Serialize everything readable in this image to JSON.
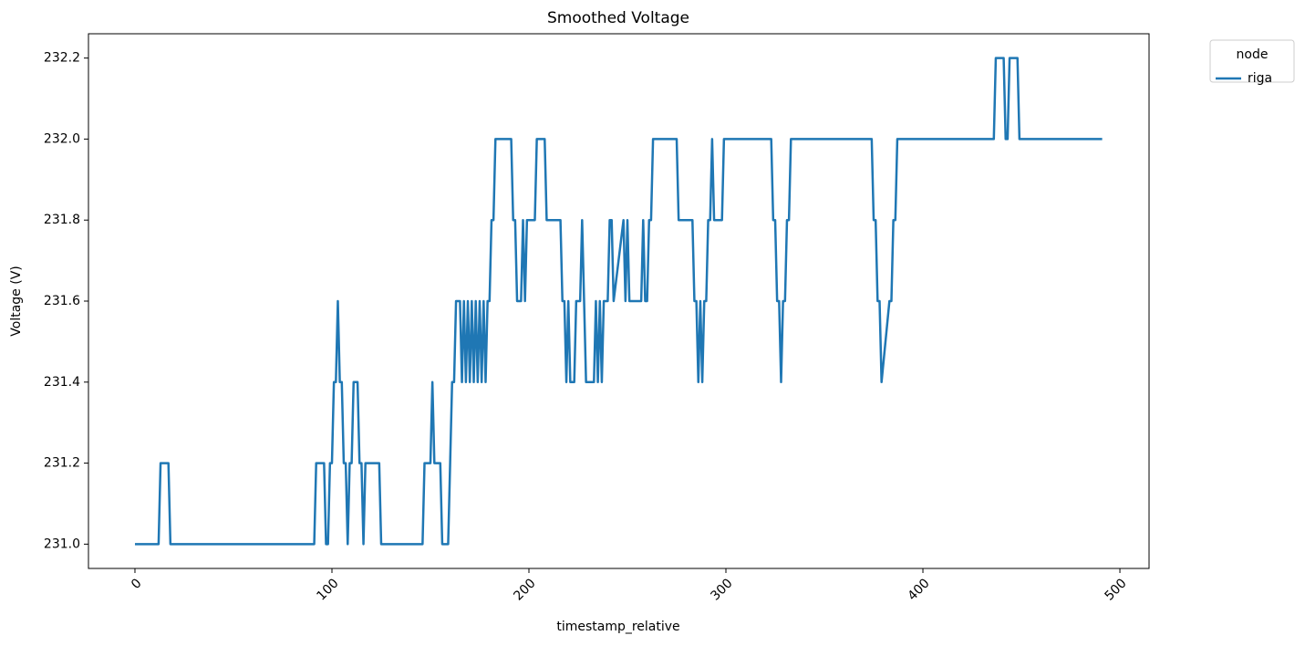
{
  "chart_data": {
    "type": "line",
    "title": "Smoothed Voltage",
    "xlabel": "timestamp_relative",
    "ylabel": "Voltage (V)",
    "x": [
      0,
      12,
      13,
      17,
      18,
      91,
      92,
      96,
      97,
      98,
      99,
      100,
      101,
      102,
      103,
      104,
      105,
      106,
      107,
      108,
      109,
      110,
      111,
      113,
      114,
      115,
      116,
      117,
      124,
      125,
      146,
      147,
      150,
      151,
      152,
      155,
      156,
      159,
      160,
      161,
      162,
      163,
      165,
      166,
      167,
      168,
      169,
      170,
      171,
      172,
      173,
      174,
      175,
      176,
      177,
      178,
      179,
      180,
      181,
      182,
      183,
      191,
      192,
      193,
      194,
      196,
      197,
      198,
      199,
      203,
      204,
      208,
      209,
      216,
      217,
      218,
      219,
      220,
      221,
      223,
      224,
      226,
      227,
      228,
      229,
      233,
      234,
      235,
      236,
      237,
      238,
      240,
      241,
      242,
      243,
      248,
      249,
      250,
      251,
      257,
      258,
      259,
      260,
      261,
      262,
      263,
      275,
      276,
      283,
      284,
      285,
      286,
      287,
      288,
      289,
      290,
      291,
      292,
      293,
      294,
      298,
      299,
      323,
      324,
      325,
      326,
      327,
      328,
      329,
      330,
      331,
      332,
      333,
      374,
      375,
      376,
      377,
      378,
      379,
      383,
      384,
      385,
      386,
      387,
      436,
      437,
      441,
      442,
      443,
      444,
      448,
      449,
      491
    ],
    "series": [
      {
        "name": "riga",
        "color": "#1f77b4",
        "values": [
          231.0,
          231.0,
          231.2,
          231.2,
          231.0,
          231.0,
          231.2,
          231.2,
          231.0,
          231.0,
          231.2,
          231.2,
          231.4,
          231.4,
          231.6,
          231.4,
          231.4,
          231.2,
          231.2,
          231.0,
          231.2,
          231.2,
          231.4,
          231.4,
          231.2,
          231.2,
          231.0,
          231.2,
          231.2,
          231.0,
          231.0,
          231.2,
          231.2,
          231.4,
          231.2,
          231.2,
          231.0,
          231.0,
          231.2,
          231.4,
          231.4,
          231.6,
          231.6,
          231.4,
          231.6,
          231.4,
          231.6,
          231.4,
          231.6,
          231.4,
          231.6,
          231.4,
          231.6,
          231.4,
          231.6,
          231.4,
          231.6,
          231.6,
          231.8,
          231.8,
          232.0,
          232.0,
          231.8,
          231.8,
          231.6,
          231.6,
          231.8,
          231.6,
          231.8,
          231.8,
          232.0,
          232.0,
          231.8,
          231.8,
          231.6,
          231.6,
          231.4,
          231.6,
          231.4,
          231.4,
          231.6,
          231.6,
          231.8,
          231.6,
          231.4,
          231.4,
          231.6,
          231.4,
          231.6,
          231.4,
          231.6,
          231.6,
          231.8,
          231.8,
          231.6,
          231.8,
          231.6,
          231.8,
          231.6,
          231.6,
          231.8,
          231.6,
          231.6,
          231.8,
          231.8,
          232.0,
          232.0,
          231.8,
          231.8,
          231.6,
          231.6,
          231.4,
          231.6,
          231.4,
          231.6,
          231.6,
          231.8,
          231.8,
          232.0,
          231.8,
          231.8,
          232.0,
          232.0,
          231.8,
          231.8,
          231.6,
          231.6,
          231.4,
          231.6,
          231.6,
          231.8,
          231.8,
          232.0,
          232.0,
          231.8,
          231.8,
          231.6,
          231.6,
          231.4,
          231.6,
          231.6,
          231.8,
          231.8,
          232.0,
          232.0,
          232.2,
          232.2,
          232.0,
          232.0,
          232.2,
          232.2,
          232.0,
          232.0
        ]
      }
    ],
    "xlim": [
      -23.6,
      514.8
    ],
    "xticks": [
      0,
      100,
      200,
      300,
      400,
      500
    ],
    "ylim": [
      230.94,
      232.26
    ],
    "yticks": [
      {
        "value": 231.0,
        "label": "231.0"
      },
      231.2,
      231.4,
      231.6,
      231.8,
      {
        "value": 232.0,
        "label": "232.0"
      },
      232.2
    ],
    "legend_title": "node",
    "legend_loc": "outside",
    "grid": false
  }
}
